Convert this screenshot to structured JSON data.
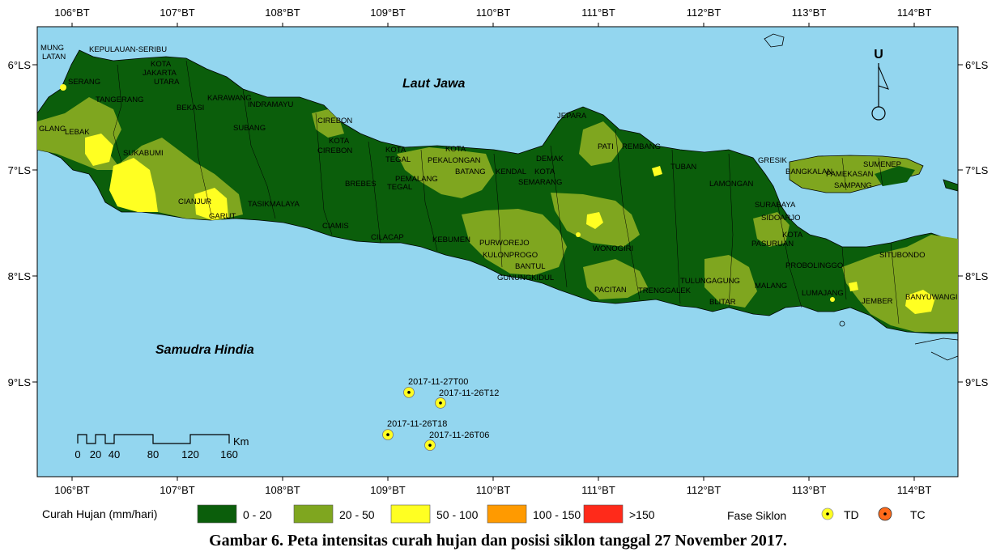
{
  "map": {
    "sea_labels": {
      "north": "Laut Jawa",
      "south": "Samudra Hindia"
    },
    "lon_ticks": [
      "106°BT",
      "107°BT",
      "108°BT",
      "109°BT",
      "110°BT",
      "111°BT",
      "112°BT",
      "113°BT",
      "114°BT"
    ],
    "lat_ticks": [
      "6°LS",
      "7°LS",
      "8°LS",
      "9°LS"
    ],
    "north_arrow": "U",
    "scale_bar": {
      "labels": [
        "0",
        "20",
        "40",
        "80",
        "120",
        "160"
      ],
      "unit": "Km"
    },
    "regions": [
      "MUNG",
      "LATAN",
      "KEPULAUAN-SERIBU",
      "KOTA",
      "JAKARTA",
      "UTARA",
      "SERANG",
      "TANGERANG",
      "BEKASI",
      "KARAWANG",
      "INDRAMAYU",
      "CIREBON",
      "KOTA",
      "CIREBON",
      "SUBANG",
      "GLANG",
      "LEBAK",
      "SUKABUMI",
      "CIANJUR",
      "GARUT",
      "TASIKMALAYA",
      "CIAMIS",
      "CILACAP",
      "BREBES",
      "TEGAL",
      "KOTA",
      "TEGAL",
      "PEMALANG",
      "PEKALONGAN",
      "KOTA",
      "BATANG",
      "KENDAL",
      "KOTA",
      "SEMARANG",
      "DEMAK",
      "JEPARA",
      "PATI",
      "REMBANG",
      "TUBAN",
      "KEBUMEN",
      "PURWOREJO",
      "KULONPROGO",
      "BANTUL",
      "GUNUNGKIDUL",
      "WONOGIRI",
      "PACITAN",
      "TRENGGALEK",
      "TULUNGAGUNG",
      "BLITAR",
      "MALANG",
      "LUMAJANG",
      "JEMBER",
      "BANYUWANGI",
      "SITUBONDO",
      "PROBOLINGGO",
      "PASURUAN",
      "KOTA",
      "SIDOARJO",
      "SURABAYA",
      "LAMONGAN",
      "GRESIK",
      "BANGKALAN",
      "SAMPANG",
      "PAMEKASAN",
      "SUMENEP"
    ],
    "cyclone_points": [
      {
        "label": "2017-11-27T00",
        "lon": 109.2,
        "lat": -9.1,
        "phase": "TD"
      },
      {
        "label": "2017-11-26T12",
        "lon": 109.5,
        "lat": -9.2,
        "phase": "TD"
      },
      {
        "label": "2017-11-26T18",
        "lon": 109.0,
        "lat": -9.5,
        "phase": "TD"
      },
      {
        "label": "2017-11-26T06",
        "lon": 109.4,
        "lat": -9.6,
        "phase": "TD"
      }
    ]
  },
  "legend": {
    "title": "Curah Hujan (mm/hari)",
    "classes": [
      {
        "label": "0 - 20",
        "color": "#0b5e0b"
      },
      {
        "label": "20 - 50",
        "color": "#7fa61f"
      },
      {
        "label": "50 - 100",
        "color": "#ffff22"
      },
      {
        "label": "100 - 150",
        "color": "#ff9a00"
      },
      {
        "label": ">150",
        "color": "#ff2a1a"
      }
    ],
    "phase_title": "Fase Siklon",
    "phases": [
      {
        "label": "TD",
        "color": "#ffff22"
      },
      {
        "label": "TC",
        "color": "#ff6a1a"
      }
    ]
  },
  "colors": {
    "sea": "#93d6ef",
    "land": "#0b5e0b"
  },
  "caption": "Gambar 6. Peta intensitas curah hujan dan posisi siklon tanggal 27 November 2017."
}
